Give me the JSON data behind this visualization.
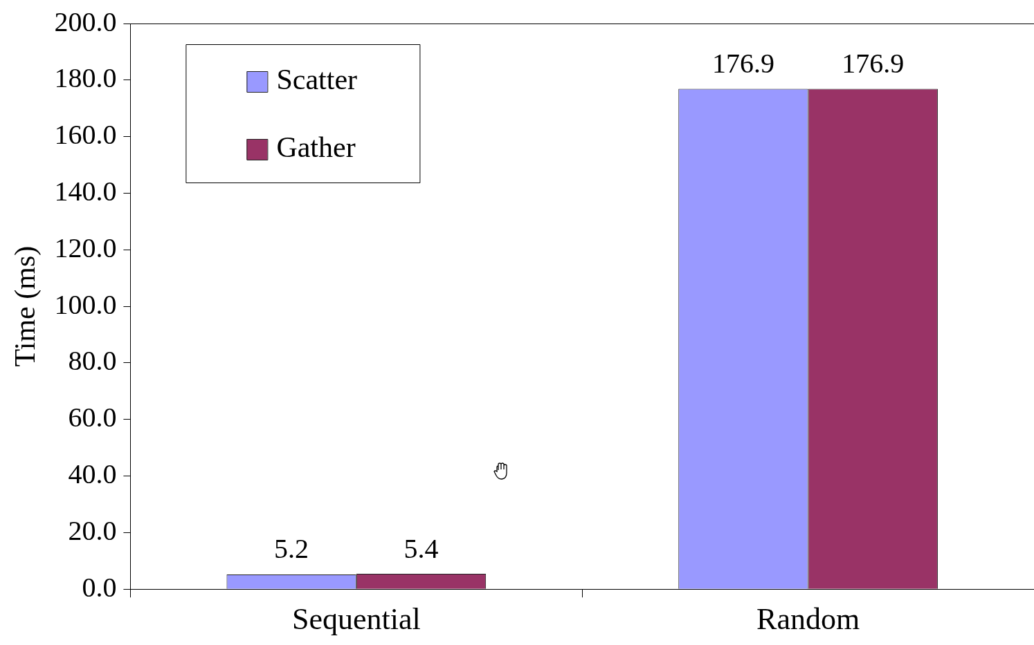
{
  "chart_data": {
    "type": "bar",
    "ylabel": "Time (ms)",
    "categories": [
      "Sequential",
      "Random"
    ],
    "series": [
      {
        "name": "Scatter",
        "color": "#9999ff",
        "values": [
          5.2,
          176.9
        ]
      },
      {
        "name": "Gather",
        "color": "#993366",
        "values": [
          5.4,
          176.9
        ]
      }
    ],
    "ylim": [
      0,
      200
    ],
    "yticks": [
      {
        "value": 0,
        "label": "0.0"
      },
      {
        "value": 20,
        "label": "20.0"
      },
      {
        "value": 40,
        "label": "40.0"
      },
      {
        "value": 60,
        "label": "60.0"
      },
      {
        "value": 80,
        "label": "80.0"
      },
      {
        "value": 100,
        "label": "100.0"
      },
      {
        "value": 120,
        "label": "120.0"
      },
      {
        "value": 140,
        "label": "140.0"
      },
      {
        "value": 160,
        "label": "160.0"
      },
      {
        "value": 180,
        "label": "180.0"
      },
      {
        "value": 200,
        "label": "200.0"
      }
    ],
    "data_labels": true,
    "legend": "top left",
    "grid": false
  }
}
